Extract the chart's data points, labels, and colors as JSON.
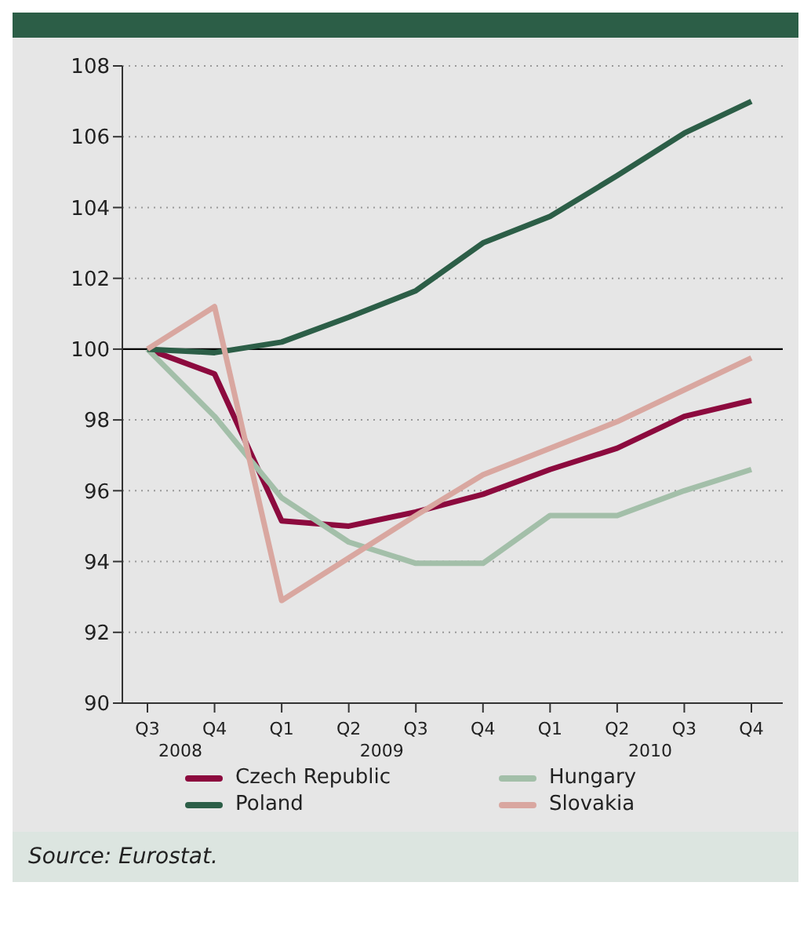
{
  "chart_data": {
    "type": "line",
    "categories": [
      "Q3",
      "Q4",
      "Q1",
      "Q2",
      "Q3",
      "Q4",
      "Q1",
      "Q2",
      "Q3",
      "Q4"
    ],
    "series": [
      {
        "name": "Czech Republic",
        "color": "#8c0a3e",
        "values": [
          100,
          99.3,
          95.15,
          95.0,
          95.4,
          95.9,
          96.6,
          97.2,
          98.1,
          98.55
        ]
      },
      {
        "name": "Hungary",
        "color": "#a3bfa9",
        "values": [
          100,
          98.1,
          95.8,
          94.55,
          93.95,
          93.95,
          95.3,
          95.3,
          96.0,
          96.6
        ]
      },
      {
        "name": "Poland",
        "color": "#2c5e47",
        "values": [
          100,
          99.9,
          100.2,
          100.9,
          101.65,
          103,
          103.75,
          104.9,
          106.1,
          107
        ]
      },
      {
        "name": "Slovakia",
        "color": "#d9a7a0",
        "values": [
          100,
          101.2,
          92.9,
          94.1,
          95.3,
          96.45,
          97.2,
          97.95,
          98.85,
          99.75
        ]
      }
    ],
    "ylim": [
      90,
      108
    ],
    "yticks": [
      90,
      92,
      94,
      96,
      98,
      100,
      102,
      104,
      106,
      108
    ],
    "grid": "y",
    "legend": "bottom",
    "marker": "none",
    "line_style": "solid",
    "ref_lines": [
      {
        "axis": "y",
        "value": 100,
        "color": "#000000"
      }
    ],
    "annotations": [
      "2008",
      "2009",
      "2010",
      "Source: Eurostat."
    ]
  }
}
